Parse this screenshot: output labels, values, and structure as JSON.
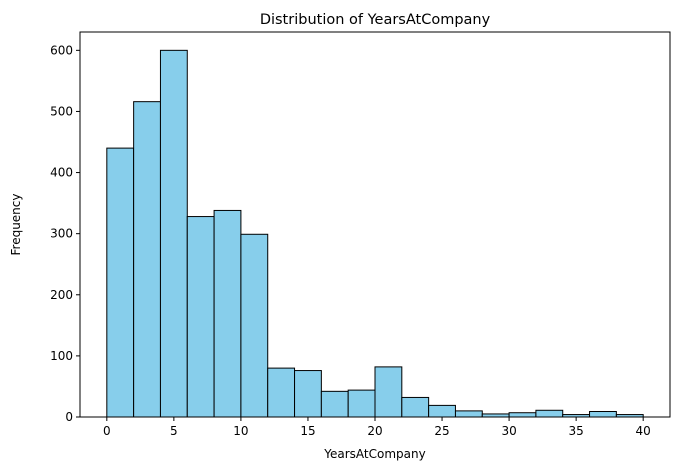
{
  "chart_data": {
    "type": "bar",
    "title": "Distribution of YearsAtCompany",
    "xlabel": "YearsAtCompany",
    "ylabel": "Frequency",
    "bin_edges": [
      0,
      2,
      4,
      6,
      8,
      10,
      12,
      14,
      16,
      18,
      20,
      22,
      24,
      26,
      28,
      30,
      32,
      34,
      36,
      38,
      40
    ],
    "values": [
      440,
      516,
      600,
      328,
      338,
      299,
      80,
      76,
      42,
      44,
      82,
      32,
      19,
      10,
      5,
      7,
      11,
      4,
      9,
      4
    ],
    "xlim": [
      -2,
      42
    ],
    "ylim": [
      0,
      630
    ],
    "xticks": [
      0,
      5,
      10,
      15,
      20,
      25,
      30,
      35,
      40
    ],
    "yticks": [
      0,
      100,
      200,
      300,
      400,
      500,
      600
    ],
    "bar_color": "#87ceeb",
    "edge_color": "#000000",
    "grid": false,
    "legend": "none"
  }
}
